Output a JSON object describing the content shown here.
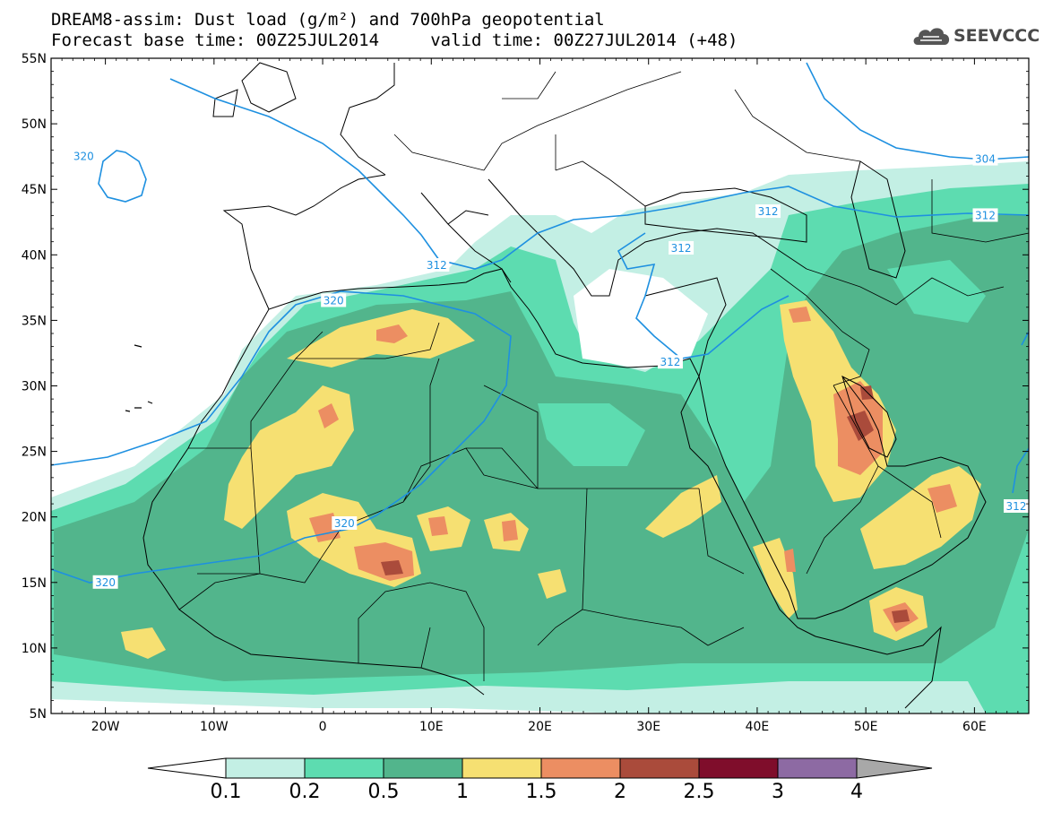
{
  "title": {
    "line1": "DREAM8-assim: Dust load (g/m²) and 700hPa geopotential",
    "line2": "Forecast base time: 00Z25JUL2014     valid time: 00Z27JUL2014 (+48)"
  },
  "logo": {
    "text": "SEEVCCC",
    "icon": "cloud-logo-icon"
  },
  "axes": {
    "lat_labels": [
      "55N",
      "50N",
      "45N",
      "40N",
      "35N",
      "30N",
      "25N",
      "20N",
      "15N",
      "10N",
      "5N"
    ],
    "lat_values": [
      55,
      50,
      45,
      40,
      35,
      30,
      25,
      20,
      15,
      10,
      5
    ],
    "lon_labels": [
      "20W",
      "10W",
      "0",
      "10E",
      "20E",
      "30E",
      "40E",
      "50E",
      "60E"
    ],
    "lon_values": [
      -20,
      -10,
      0,
      10,
      20,
      30,
      40,
      50,
      60
    ],
    "lon_range": [
      -25,
      65
    ],
    "lat_range": [
      5,
      55
    ]
  },
  "contour_labels": [
    {
      "text": "320",
      "lon": -22,
      "lat": 47.5
    },
    {
      "text": "320",
      "lon": 1,
      "lat": 36.5
    },
    {
      "text": "320",
      "lon": -20,
      "lat": 15
    },
    {
      "text": "320",
      "lon": 2,
      "lat": 19.5
    },
    {
      "text": "312",
      "lon": 10.5,
      "lat": 39.2
    },
    {
      "text": "312",
      "lon": 33,
      "lat": 40.5
    },
    {
      "text": "312",
      "lon": 32,
      "lat": 31.8
    },
    {
      "text": "312",
      "lon": 41,
      "lat": 43.3
    },
    {
      "text": "312",
      "lon": 61,
      "lat": 43
    },
    {
      "text": "304",
      "lon": 61,
      "lat": 47.3
    },
    {
      "text": "312",
      "lon": 64,
      "lat": 20.8
    }
  ],
  "colorbar": {
    "labels": [
      "0.1",
      "0.2",
      "0.5",
      "1",
      "1.5",
      "2",
      "2.5",
      "3",
      "4"
    ],
    "colors": [
      "#c3efe4",
      "#5ddcb0",
      "#52b58c",
      "#f6e072",
      "#ec8e62",
      "#aa4b3b",
      "#7f0d2b",
      "#8d6aa3"
    ],
    "under_color": "#ffffff",
    "over_color": "#a8a8a8"
  },
  "colors": {
    "coast": "#000000",
    "contour": "#1e90e0"
  }
}
